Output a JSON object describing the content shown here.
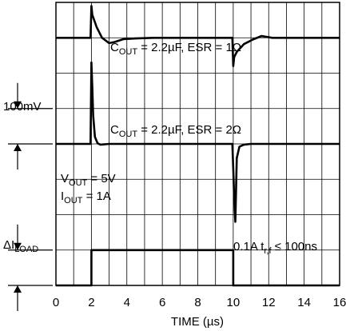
{
  "chart_data": {
    "type": "line",
    "title": "",
    "xlabel": "TIME (µs)",
    "ylabel": "",
    "xlim": [
      0,
      16
    ],
    "ylim": [
      0,
      8
    ],
    "x_ticks": [
      "0",
      "2",
      "4",
      "6",
      "8",
      "10",
      "12",
      "14",
      "16"
    ],
    "grid": true,
    "series": [
      {
        "name": "C_OUT = 2.2µF, ESR = 1Ω",
        "x": [
          0,
          1.95,
          2.0,
          2.05,
          2.3,
          2.6,
          3.0,
          3.3,
          3.8,
          4.5,
          5.5,
          7,
          9,
          9.95,
          10.0,
          10.05,
          10.2,
          10.6,
          11.1,
          11.6,
          12.2,
          13.5,
          16
        ],
        "y": [
          7.0,
          7.0,
          7.9,
          7.65,
          7.3,
          7.0,
          6.85,
          6.88,
          6.96,
          6.98,
          7.0,
          7.0,
          7.0,
          7.0,
          6.2,
          6.45,
          6.6,
          6.82,
          6.95,
          7.05,
          7.0,
          7.0,
          7.0
        ]
      },
      {
        "name": "C_OUT = 2.2µF, ESR = 2Ω",
        "x": [
          0,
          1.95,
          2.0,
          2.05,
          2.1,
          2.2,
          2.35,
          2.5,
          3.0,
          5,
          9.95,
          10.0,
          10.05,
          10.12,
          10.2,
          10.35,
          10.6,
          11.0,
          12,
          16
        ],
        "y": [
          4.0,
          4.0,
          6.3,
          5.6,
          4.8,
          4.2,
          4.02,
          3.98,
          4.0,
          4.0,
          4.0,
          3.3,
          2.5,
          1.8,
          3.6,
          3.92,
          3.98,
          4.0,
          4.0,
          4.0
        ]
      },
      {
        "name": "ΔI_LOAD",
        "x": [
          0,
          2.0,
          2.0,
          10.0,
          10.0,
          16
        ],
        "y": [
          0.0,
          0.0,
          1.0,
          1.0,
          0.0,
          0.0
        ]
      }
    ],
    "annotations": {
      "trace1": {
        "main": "C",
        "sub": "OUT",
        "rest": " = 2.2µF, ESR = 1Ω"
      },
      "trace2": {
        "main": "C",
        "sub": "OUT",
        "rest": " = 2.2µF, ESR = 2Ω"
      },
      "vout": {
        "main": "V",
        "sub": "OUT",
        "rest": " = 5V"
      },
      "iout": {
        "main": "I",
        "sub": "OUT",
        "rest": " = 1A"
      },
      "load": {
        "pre": "0.1A t",
        "sub": "r,f",
        "rest": " ≤ 100ns"
      },
      "scale_voltage": "100mV",
      "scale_current": {
        "main": "ΔI",
        "sub": "LOAD"
      }
    }
  }
}
